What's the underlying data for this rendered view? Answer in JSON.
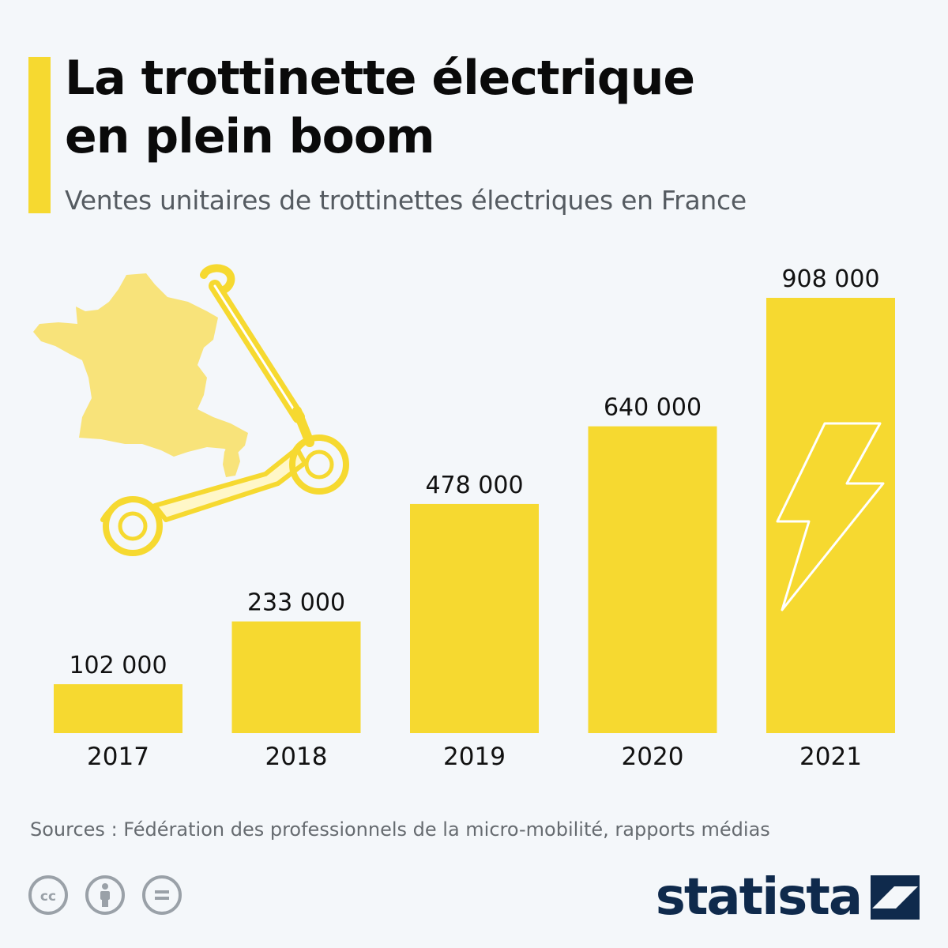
{
  "header": {
    "title_line1": "La trottinette électrique",
    "title_line2": "en plein boom",
    "subtitle": "Ventes unitaires de trottinettes électriques en France"
  },
  "chart_data": {
    "type": "bar",
    "categories": [
      "2017",
      "2018",
      "2019",
      "2020",
      "2021"
    ],
    "values": [
      102000,
      233000,
      478000,
      640000,
      908000
    ],
    "value_labels": [
      "102 000",
      "233 000",
      "478 000",
      "640 000",
      "908 000"
    ],
    "title": "La trottinette électrique en plein boom",
    "subtitle": "Ventes unitaires de trottinettes électriques en France",
    "xlabel": "",
    "ylabel": "",
    "ylim": [
      0,
      908000
    ],
    "grid": false,
    "bar_color": "#f6d930"
  },
  "decorations": {
    "map_icon": "france-map-icon",
    "scooter_icon": "electric-scooter-icon",
    "lightning_icon": "lightning-bolt-icon",
    "map_color": "#f8e37a"
  },
  "footer": {
    "source": "Sources : Fédération des professionnels de la micro-mobilité, rapports médias",
    "license_icons": [
      "creative-commons-icon",
      "attribution-icon",
      "no-derivatives-icon"
    ],
    "brand": "statista"
  }
}
